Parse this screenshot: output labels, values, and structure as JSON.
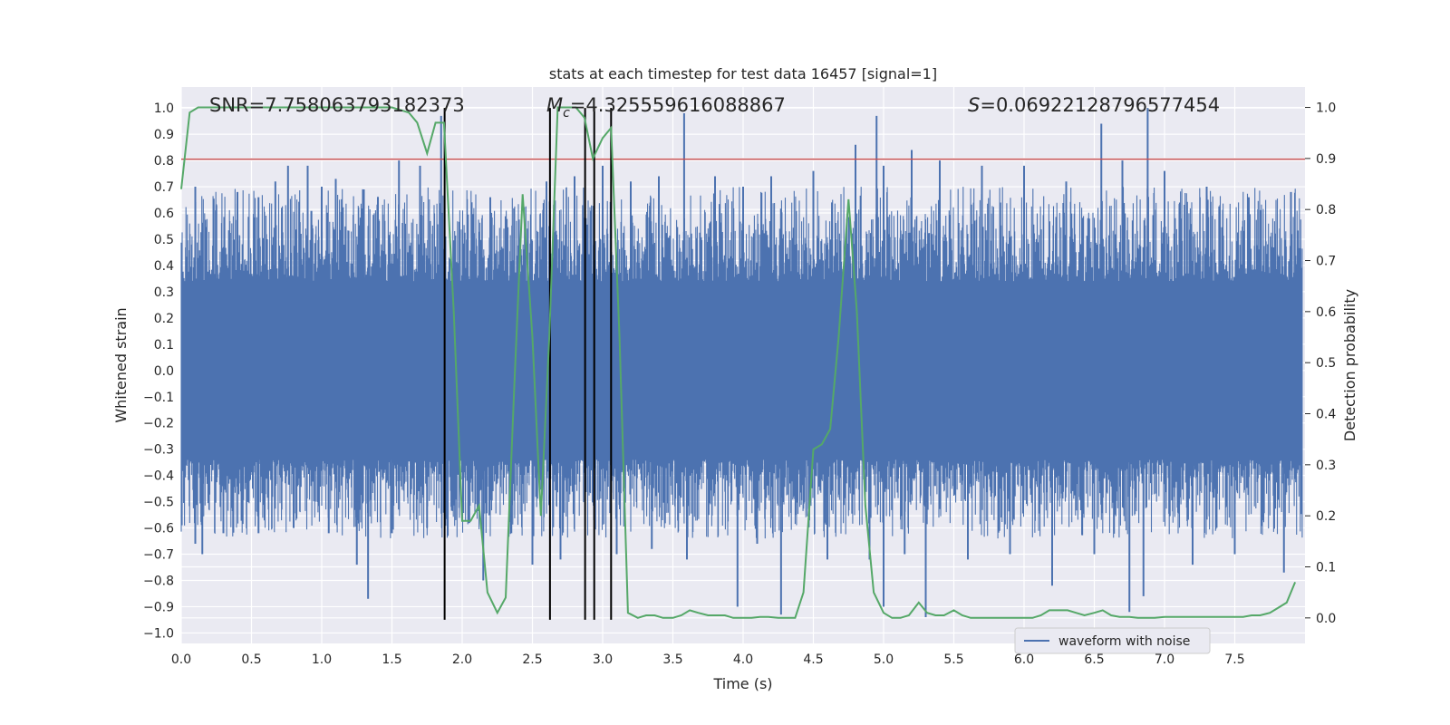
{
  "chart_data": {
    "type": "line",
    "title": "stats at each timestep for test data 16457 [signal=1]",
    "xlabel": "Time (s)",
    "ylabel": "Whitened strain",
    "ylabel_right": "Detection probability",
    "xlim": [
      0.0,
      8.0
    ],
    "ylim": [
      -1.04,
      1.08
    ],
    "ylim_right": [
      -0.05,
      1.04
    ],
    "x_ticks": [
      0.0,
      0.5,
      1.0,
      1.5,
      2.0,
      2.5,
      3.0,
      3.5,
      4.0,
      4.5,
      5.0,
      5.5,
      6.0,
      6.5,
      7.0,
      7.5
    ],
    "x_tick_labels": [
      "0.0",
      "0.5",
      "1.0",
      "1.5",
      "2.0",
      "2.5",
      "3.0",
      "3.5",
      "4.0",
      "4.5",
      "5.0",
      "5.5",
      "6.0",
      "6.5",
      "7.0",
      "7.5"
    ],
    "y_ticks": [
      -1.0,
      -0.9,
      -0.8,
      -0.7,
      -0.6,
      -0.5,
      -0.4,
      -0.3,
      -0.2,
      -0.1,
      0.0,
      0.1,
      0.2,
      0.3,
      0.4,
      0.5,
      0.6,
      0.7,
      0.8,
      0.9,
      1.0
    ],
    "y_tick_labels": [
      "−1.0",
      "−0.9",
      "−0.8",
      "−0.7",
      "−0.6",
      "−0.5",
      "−0.4",
      "−0.3",
      "−0.2",
      "−0.1",
      "0.0",
      "0.1",
      "0.2",
      "0.3",
      "0.4",
      "0.5",
      "0.6",
      "0.7",
      "0.8",
      "0.9",
      "1.0"
    ],
    "y_right_ticks": [
      0.0,
      0.1,
      0.2,
      0.3,
      0.4,
      0.5,
      0.6,
      0.7,
      0.8,
      0.9,
      1.0
    ],
    "y_right_tick_labels": [
      "0.0",
      "0.1",
      "0.2",
      "0.3",
      "0.4",
      "0.5",
      "0.6",
      "0.7",
      "0.8",
      "0.9",
      "1.0"
    ],
    "grid": true,
    "legend_position": "lower right",
    "annotations": {
      "snr": "SNR=7.758063793182373",
      "mc_symbol": "M",
      "mc_subscript": "c",
      "mc_value": "=4.325559616088867",
      "s_symbol": "S",
      "s_value": "=0.06922128796577454"
    },
    "threshold_line": {
      "y": 0.805,
      "color": "#c44e52"
    },
    "vertical_markers": [
      1.875,
      2.625,
      2.875,
      2.94,
      3.06
    ],
    "vertical_marker_range": [
      -0.95,
      1.0
    ],
    "waveform": {
      "name": "waveform with noise",
      "color": "#4c72b0",
      "core_amplitude": 0.34,
      "positive_spikes": [
        {
          "x": 0.1,
          "y": 0.7
        },
        {
          "x": 0.25,
          "y": 0.63
        },
        {
          "x": 0.4,
          "y": 0.68
        },
        {
          "x": 0.55,
          "y": 0.66
        },
        {
          "x": 0.67,
          "y": 0.72
        },
        {
          "x": 0.76,
          "y": 0.78
        },
        {
          "x": 0.9,
          "y": 0.78
        },
        {
          "x": 1.0,
          "y": 0.7
        },
        {
          "x": 1.1,
          "y": 0.73
        },
        {
          "x": 1.3,
          "y": 0.69
        },
        {
          "x": 1.4,
          "y": 0.66
        },
        {
          "x": 1.55,
          "y": 0.8
        },
        {
          "x": 1.7,
          "y": 0.78
        },
        {
          "x": 1.85,
          "y": 0.97
        },
        {
          "x": 2.2,
          "y": 0.66
        },
        {
          "x": 2.6,
          "y": 0.72
        },
        {
          "x": 2.8,
          "y": 0.74
        },
        {
          "x": 3.0,
          "y": 0.78
        },
        {
          "x": 3.2,
          "y": 0.72
        },
        {
          "x": 3.4,
          "y": 0.74
        },
        {
          "x": 3.58,
          "y": 0.98
        },
        {
          "x": 3.8,
          "y": 0.74
        },
        {
          "x": 4.0,
          "y": 0.7
        },
        {
          "x": 4.2,
          "y": 0.74
        },
        {
          "x": 4.5,
          "y": 0.76
        },
        {
          "x": 4.8,
          "y": 0.86
        },
        {
          "x": 4.95,
          "y": 0.97
        },
        {
          "x": 5.0,
          "y": 0.78
        },
        {
          "x": 5.2,
          "y": 0.84
        },
        {
          "x": 5.4,
          "y": 0.8
        },
        {
          "x": 5.7,
          "y": 0.78
        },
        {
          "x": 6.0,
          "y": 0.78
        },
        {
          "x": 6.3,
          "y": 0.72
        },
        {
          "x": 6.55,
          "y": 0.94
        },
        {
          "x": 6.7,
          "y": 0.8
        },
        {
          "x": 6.88,
          "y": 1.0
        },
        {
          "x": 7.0,
          "y": 0.76
        },
        {
          "x": 7.3,
          "y": 0.7
        },
        {
          "x": 7.6,
          "y": 0.66
        },
        {
          "x": 7.9,
          "y": 0.68
        }
      ],
      "negative_spikes": [
        {
          "x": 0.1,
          "y": -0.66
        },
        {
          "x": 0.15,
          "y": -0.7
        },
        {
          "x": 0.3,
          "y": -0.62
        },
        {
          "x": 0.55,
          "y": -0.62
        },
        {
          "x": 0.8,
          "y": -0.6
        },
        {
          "x": 1.05,
          "y": -0.62
        },
        {
          "x": 1.25,
          "y": -0.74
        },
        {
          "x": 1.33,
          "y": -0.87
        },
        {
          "x": 1.5,
          "y": -0.62
        },
        {
          "x": 1.75,
          "y": -0.6
        },
        {
          "x": 2.15,
          "y": -0.8
        },
        {
          "x": 2.35,
          "y": -0.62
        },
        {
          "x": 2.5,
          "y": -0.74
        },
        {
          "x": 2.7,
          "y": -0.72
        },
        {
          "x": 3.1,
          "y": -0.7
        },
        {
          "x": 3.35,
          "y": -0.68
        },
        {
          "x": 3.6,
          "y": -0.72
        },
        {
          "x": 3.96,
          "y": -0.9
        },
        {
          "x": 4.1,
          "y": -0.66
        },
        {
          "x": 4.27,
          "y": -0.93
        },
        {
          "x": 4.6,
          "y": -0.72
        },
        {
          "x": 4.9,
          "y": -0.72
        },
        {
          "x": 5.0,
          "y": -0.9
        },
        {
          "x": 5.15,
          "y": -0.7
        },
        {
          "x": 5.3,
          "y": -0.94
        },
        {
          "x": 5.6,
          "y": -0.72
        },
        {
          "x": 5.9,
          "y": -0.7
        },
        {
          "x": 6.2,
          "y": -0.82
        },
        {
          "x": 6.5,
          "y": -0.7
        },
        {
          "x": 6.75,
          "y": -0.92
        },
        {
          "x": 6.85,
          "y": -0.86
        },
        {
          "x": 7.2,
          "y": -0.74
        },
        {
          "x": 7.5,
          "y": -0.7
        },
        {
          "x": 7.85,
          "y": -0.77
        }
      ]
    },
    "detection_probability": {
      "color": "#55a868",
      "x": [
        0.0,
        0.06,
        0.12,
        0.25,
        0.5,
        0.75,
        1.0,
        1.25,
        1.5,
        1.62,
        1.68,
        1.75,
        1.81,
        1.87,
        1.94,
        2.0,
        2.06,
        2.12,
        2.18,
        2.25,
        2.31,
        2.37,
        2.43,
        2.5,
        2.56,
        2.62,
        2.68,
        2.75,
        2.81,
        2.87,
        2.93,
        3.0,
        3.06,
        3.12,
        3.18,
        3.25,
        3.31,
        3.37,
        3.43,
        3.5,
        3.56,
        3.62,
        3.68,
        3.75,
        3.81,
        3.87,
        3.93,
        4.0,
        4.06,
        4.12,
        4.18,
        4.25,
        4.31,
        4.37,
        4.43,
        4.5,
        4.56,
        4.62,
        4.68,
        4.75,
        4.81,
        4.87,
        4.93,
        5.0,
        5.06,
        5.12,
        5.18,
        5.25,
        5.31,
        5.37,
        5.43,
        5.5,
        5.56,
        5.62,
        5.68,
        5.75,
        5.81,
        5.87,
        5.93,
        6.0,
        6.06,
        6.12,
        6.18,
        6.25,
        6.31,
        6.37,
        6.43,
        6.5,
        6.56,
        6.62,
        6.68,
        6.75,
        6.81,
        6.87,
        6.93,
        7.0,
        7.06,
        7.12,
        7.18,
        7.25,
        7.31,
        7.37,
        7.43,
        7.5,
        7.56,
        7.62,
        7.68,
        7.75,
        7.81,
        7.87,
        7.93
      ],
      "y": [
        0.84,
        0.99,
        1.0,
        1.0,
        1.0,
        1.0,
        1.0,
        1.0,
        1.0,
        0.99,
        0.97,
        0.91,
        0.97,
        0.97,
        0.6,
        0.19,
        0.19,
        0.22,
        0.05,
        0.01,
        0.04,
        0.45,
        0.83,
        0.55,
        0.2,
        0.55,
        1.0,
        1.0,
        1.0,
        0.98,
        0.9,
        0.94,
        0.96,
        0.55,
        0.01,
        0.0,
        0.005,
        0.005,
        0.0,
        0.0,
        0.005,
        0.015,
        0.01,
        0.005,
        0.005,
        0.005,
        0.0,
        0.0,
        0.0,
        0.002,
        0.002,
        0.0,
        0.0,
        0.0,
        0.05,
        0.33,
        0.34,
        0.37,
        0.55,
        0.82,
        0.6,
        0.22,
        0.05,
        0.01,
        0.0,
        0.0,
        0.005,
        0.03,
        0.01,
        0.005,
        0.005,
        0.015,
        0.005,
        0.0,
        0.0,
        0.0,
        0.0,
        0.0,
        0.0,
        0.0,
        0.0,
        0.005,
        0.015,
        0.015,
        0.015,
        0.01,
        0.005,
        0.01,
        0.015,
        0.005,
        0.002,
        0.002,
        0.0,
        0.0,
        0.0,
        0.002,
        0.002,
        0.002,
        0.002,
        0.002,
        0.002,
        0.002,
        0.002,
        0.002,
        0.002,
        0.005,
        0.005,
        0.01,
        0.02,
        0.03,
        0.07
      ]
    }
  }
}
